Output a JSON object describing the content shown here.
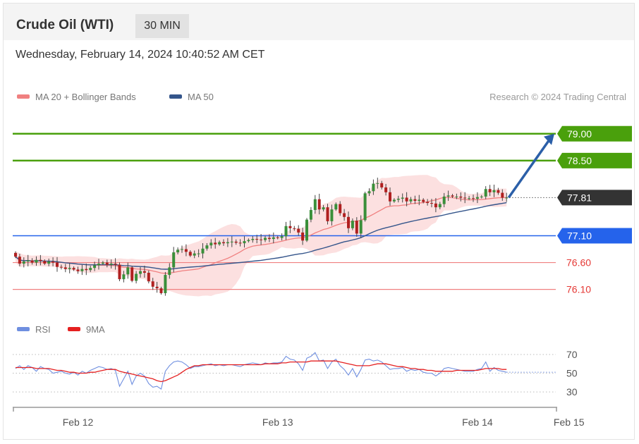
{
  "header": {
    "title": "Crude Oil (WTI)",
    "interval": "30 MIN",
    "datetime": "Wednesday, February 14, 2024 10:40:52 AM CET"
  },
  "legend": {
    "ma20": "MA 20 + Bollinger Bands",
    "ma50": "MA 50",
    "research": "Research © 2024 Trading Central",
    "rsi": "RSI",
    "rsi_ma": "9MA"
  },
  "colors": {
    "resistance": "#4aa00c",
    "support": "#2563eb",
    "minor": "#f08080",
    "current": "#333333",
    "ma20": "#f08080",
    "ma50": "#34558b",
    "band": "#fbd5d5",
    "up": "#3a8f3a",
    "down": "#b02020",
    "rsi": "#6f8fe0",
    "rsi_ma": "#e52020",
    "arrow": "#2b5fa8"
  },
  "chart_data": {
    "type": "candlestick",
    "ylim": [
      75.78,
      79.26
    ],
    "levels": [
      {
        "label": "79.00",
        "value": 79.0,
        "kind": "resistance"
      },
      {
        "label": "78.50",
        "value": 78.5,
        "kind": "resistance"
      },
      {
        "label": "77.81",
        "value": 77.81,
        "kind": "current"
      },
      {
        "label": "77.10",
        "value": 77.1,
        "kind": "support"
      },
      {
        "label": "76.60",
        "value": 76.6,
        "kind": "minor"
      },
      {
        "label": "76.10",
        "value": 76.1,
        "kind": "minor"
      }
    ],
    "arrow": {
      "from": 77.81,
      "to": 79.0
    },
    "close": [
      76.71,
      76.58,
      76.62,
      76.64,
      76.6,
      76.65,
      76.63,
      76.58,
      76.62,
      76.6,
      76.52,
      76.51,
      76.48,
      76.5,
      76.47,
      76.44,
      76.48,
      76.46,
      76.5,
      76.55,
      76.58,
      76.6,
      76.56,
      76.58,
      76.56,
      76.29,
      76.38,
      76.51,
      76.26,
      76.39,
      76.44,
      76.41,
      76.25,
      76.15,
      76.12,
      76.03,
      76.37,
      76.51,
      76.79,
      76.84,
      76.85,
      76.8,
      76.73,
      76.77,
      76.77,
      76.86,
      76.92,
      76.97,
      76.94,
      76.98,
      76.96,
      76.98,
      76.99,
      76.97,
      76.96,
      77.0,
      77.02,
      77.04,
      77.03,
      77.02,
      77.06,
      77.04,
      77.07,
      77.06,
      77.09,
      77.28,
      77.24,
      77.23,
      77.16,
      77.01,
      77.4,
      77.58,
      77.78,
      77.59,
      77.63,
      77.37,
      77.59,
      77.69,
      77.52,
      77.45,
      77.24,
      77.38,
      77.14,
      77.39,
      77.89,
      77.93,
      78.07,
      78.08,
      78.0,
      77.91,
      77.74,
      77.77,
      77.79,
      77.81,
      77.74,
      77.78,
      77.75,
      77.77,
      77.73,
      77.71,
      77.7,
      77.63,
      77.69,
      77.83,
      77.85,
      77.83,
      77.83,
      77.81,
      77.8,
      77.8,
      77.79,
      77.82,
      77.83,
      77.97,
      77.91,
      77.95,
      77.9,
      77.81,
      77.81
    ],
    "x_ticks": [
      {
        "label": "Feb 12",
        "index": 15
      },
      {
        "label": "Feb 13",
        "index": 63
      },
      {
        "label": "Feb 14",
        "index": 111
      },
      {
        "label": "Feb 15",
        "index": 133
      }
    ],
    "rsi": {
      "ylim": [
        18,
        82
      ],
      "ticks": [
        70,
        50,
        30
      ],
      "values": [
        55,
        58,
        54,
        58,
        56,
        52,
        57,
        55,
        54,
        50,
        51,
        52,
        50,
        49,
        51,
        48,
        52,
        50,
        53,
        55,
        57,
        56,
        54,
        55,
        53,
        36,
        44,
        52,
        38,
        47,
        50,
        47,
        39,
        35,
        36,
        33,
        52,
        58,
        62,
        63,
        62,
        59,
        55,
        57,
        57,
        58,
        59,
        60,
        58,
        59,
        58,
        59,
        59,
        58,
        57,
        59,
        60,
        61,
        60,
        59,
        61,
        60,
        61,
        61,
        62,
        68,
        65,
        64,
        60,
        53,
        66,
        68,
        72,
        63,
        64,
        55,
        62,
        65,
        58,
        54,
        48,
        55,
        46,
        54,
        64,
        65,
        63,
        64,
        62,
        58,
        54,
        55,
        55,
        56,
        52,
        54,
        53,
        54,
        51,
        50,
        50,
        47,
        50,
        55,
        56,
        55,
        54,
        53,
        52,
        52,
        52,
        54,
        55,
        62,
        52,
        56,
        53,
        52,
        51
      ],
      "ma": [
        56,
        56,
        56,
        56,
        56,
        55,
        55,
        55,
        55,
        54,
        53,
        53,
        52,
        51,
        51,
        50,
        50,
        50,
        51,
        51,
        52,
        53,
        54,
        54,
        54,
        52,
        51,
        50,
        49,
        48,
        47,
        46,
        45,
        44,
        42,
        41,
        42,
        44,
        46,
        48,
        51,
        54,
        56,
        58,
        58,
        59,
        59,
        59,
        59,
        59,
        59,
        59,
        59,
        59,
        59,
        59,
        59,
        59,
        59,
        59,
        60,
        60,
        60,
        60,
        61,
        61,
        62,
        62,
        62,
        62,
        62,
        63,
        63,
        63,
        63,
        63,
        63,
        63,
        62,
        61,
        60,
        59,
        58,
        58,
        58,
        58,
        59,
        60,
        60,
        60,
        59,
        58,
        57,
        57,
        56,
        55,
        55,
        54,
        54,
        53,
        53,
        52,
        52,
        52,
        52,
        52,
        53,
        53,
        53,
        53,
        53,
        53,
        54,
        55,
        55,
        55,
        55,
        54,
        54
      ]
    }
  }
}
